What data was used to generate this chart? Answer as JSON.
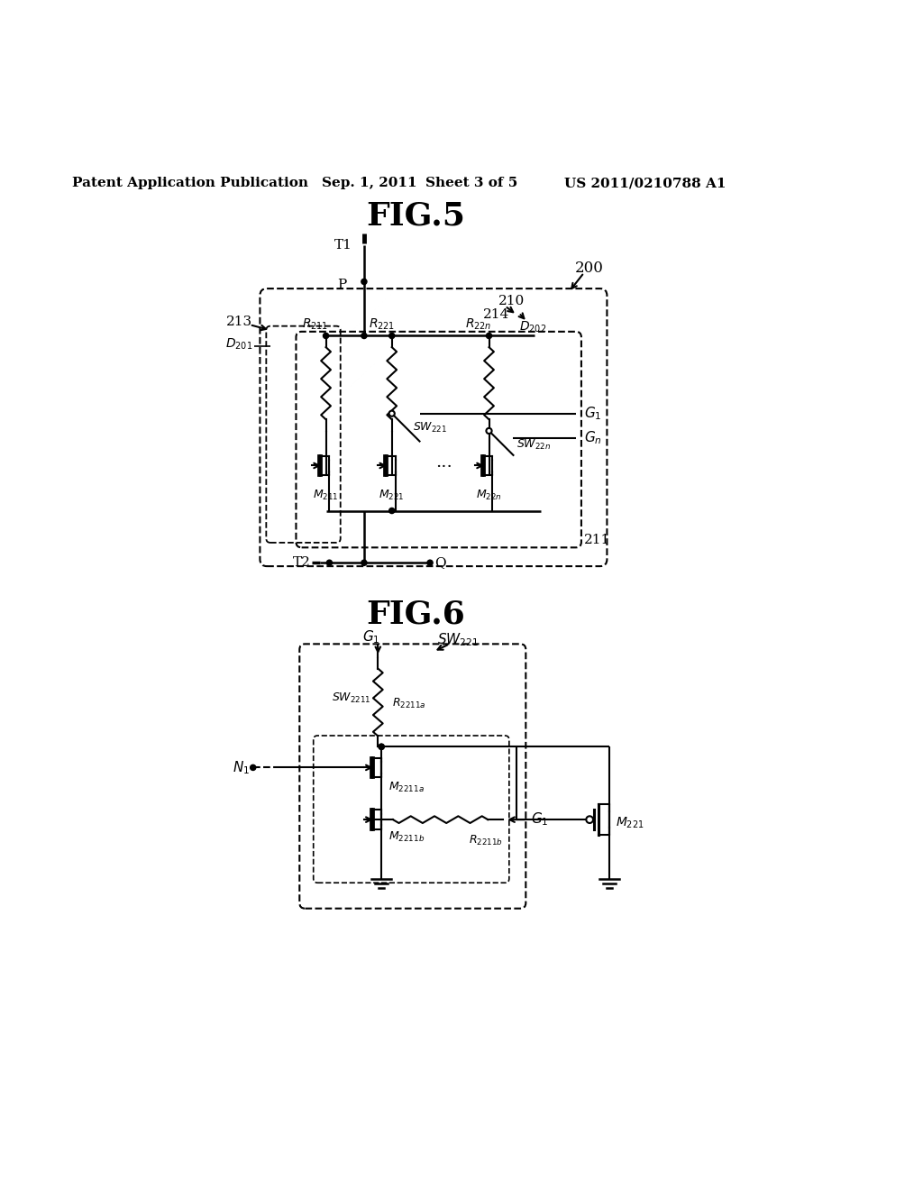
{
  "title_header": "Patent Application Publication",
  "date_header": "Sep. 1, 2011",
  "sheet_header": "Sheet 3 of 5",
  "patent_header": "US 2011/0210788 A1",
  "fig5_label": "FIG.5",
  "fig6_label": "FIG.6",
  "bg_color": "#ffffff",
  "line_color": "#000000"
}
